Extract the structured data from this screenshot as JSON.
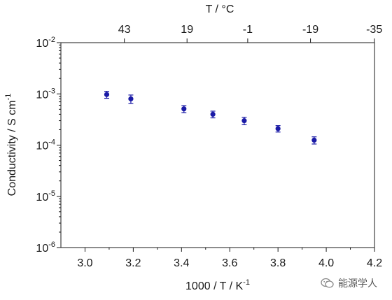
{
  "chart_data": {
    "type": "scatter",
    "xlabel": "1000 / T / K",
    "xlabel_sup": "-1",
    "ylabel": "Conductivity / S cm",
    "ylabel_sup": "-1",
    "top_axis_label": "T / °C",
    "xlim": [
      2.9,
      4.2
    ],
    "ylim_exponent": [
      -6,
      -2
    ],
    "yscale": "log",
    "x_ticks": [
      "3.0",
      "3.2",
      "3.4",
      "3.6",
      "3.8",
      "4.0",
      "4.2"
    ],
    "y_ticks": [
      {
        "base": "10",
        "exp": "-6"
      },
      {
        "base": "10",
        "exp": "-5"
      },
      {
        "base": "10",
        "exp": "-4"
      },
      {
        "base": "10",
        "exp": "-3"
      },
      {
        "base": "10",
        "exp": "-2"
      }
    ],
    "top_ticks": [
      "43",
      "19",
      "-1",
      "-19",
      "-35"
    ],
    "series": [
      {
        "color": "#1a1aa6",
        "points": [
          {
            "x": 3.09,
            "y": 0.00097,
            "err": 0.00015
          },
          {
            "x": 3.19,
            "y": 0.0008,
            "err": 0.00015
          },
          {
            "x": 3.41,
            "y": 0.00051,
            "err": 8e-05
          },
          {
            "x": 3.53,
            "y": 0.0004,
            "err": 6e-05
          },
          {
            "x": 3.66,
            "y": 0.0003,
            "err": 5e-05
          },
          {
            "x": 3.8,
            "y": 0.00021,
            "err": 3e-05
          },
          {
            "x": 3.95,
            "y": 0.000125,
            "err": 2e-05
          }
        ]
      }
    ],
    "grid": false,
    "legend": "none"
  },
  "watermark": {
    "icon": "wechat-icon",
    "text": "能源学人"
  }
}
